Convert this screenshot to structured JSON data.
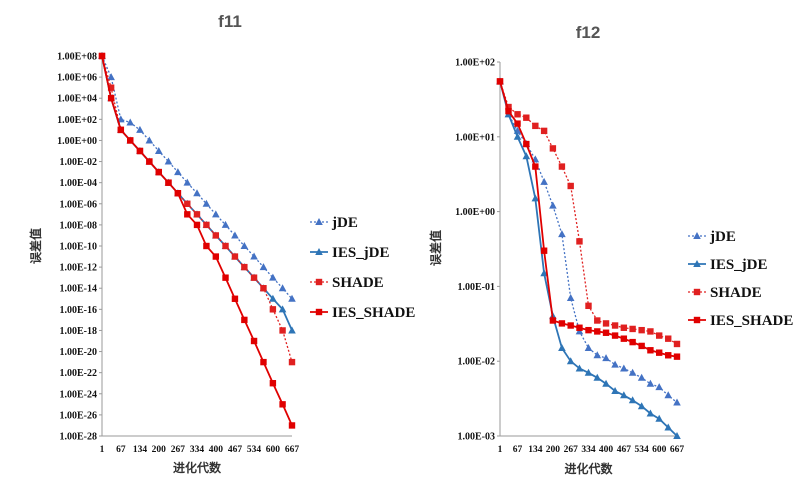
{
  "chart_data": [
    {
      "type": "line",
      "title": "f11",
      "xlabel": "进化代数",
      "ylabel": "误差值",
      "yscale": "log",
      "ylim": [
        1e-28,
        100000000.0
      ],
      "xlim": [
        1,
        667
      ],
      "x_ticks": [
        "1",
        "67",
        "134",
        "200",
        "267",
        "334",
        "400",
        "467",
        "534",
        "600",
        "667"
      ],
      "y_ticks": [
        "1.00E+08",
        "1.00E+06",
        "1.00E+04",
        "1.00E+02",
        "1.00E+00",
        "1.00E-02",
        "1.00E-04",
        "1.00E-06",
        "1.00E-08",
        "1.00E-10",
        "1.00E-12",
        "1.00E-14",
        "1.00E-16",
        "1.00E-18",
        "1.00E-20",
        "1.00E-22",
        "1.00E-24",
        "1.00E-26",
        "1.00E-28"
      ],
      "grid": false,
      "legend_position": "right",
      "series": [
        {
          "name": "jDE",
          "color": "#4472c4",
          "dash": true,
          "marker": "triangle",
          "x": [
            1,
            33,
            67,
            100,
            134,
            167,
            200,
            234,
            267,
            300,
            334,
            367,
            400,
            434,
            467,
            500,
            534,
            567,
            600,
            634,
            667
          ],
          "y": [
            100000000.0,
            1000000.0,
            100.0,
            50.0,
            10.0,
            1.0,
            0.1,
            0.01,
            0.001,
            0.0001,
            1e-05,
            1e-06,
            1e-07,
            1e-08,
            1e-09,
            1e-10,
            1e-11,
            1e-12,
            1e-13,
            1e-14,
            1e-15
          ]
        },
        {
          "name": "IES_jDE",
          "color": "#2e75b6",
          "dash": false,
          "marker": "triangle",
          "x": [
            1,
            33,
            67,
            100,
            134,
            167,
            200,
            234,
            267,
            300,
            334,
            367,
            400,
            434,
            467,
            500,
            534,
            567,
            600,
            634,
            667
          ],
          "y": [
            100000000.0,
            10000.0,
            10.0,
            1.0,
            0.1,
            0.01,
            0.001,
            0.0001,
            1e-05,
            1e-06,
            1e-07,
            1e-08,
            1e-09,
            1e-10,
            1e-11,
            1e-12,
            1e-13,
            1e-14,
            1e-15,
            1e-16,
            1e-18
          ]
        },
        {
          "name": "SHADE",
          "color": "#e02020",
          "dash": true,
          "marker": "square",
          "x": [
            1,
            33,
            67,
            100,
            134,
            167,
            200,
            234,
            267,
            300,
            334,
            367,
            400,
            434,
            467,
            500,
            534,
            567,
            600,
            634,
            667
          ],
          "y": [
            100000000.0,
            100000.0,
            10.0,
            1.0,
            0.1,
            0.01,
            0.001,
            0.0001,
            1e-05,
            1e-06,
            1e-07,
            1e-08,
            1e-09,
            1e-10,
            1e-11,
            1e-12,
            1e-13,
            1e-14,
            1e-16,
            1e-18,
            1e-21
          ]
        },
        {
          "name": "IES_SHADE",
          "color": "#e00000",
          "dash": false,
          "marker": "square",
          "x": [
            1,
            33,
            67,
            100,
            134,
            167,
            200,
            234,
            267,
            300,
            334,
            367,
            400,
            434,
            467,
            500,
            534,
            567,
            600,
            634,
            667
          ],
          "y": [
            100000000.0,
            10000.0,
            10.0,
            1.0,
            0.1,
            0.01,
            0.001,
            0.0001,
            1e-05,
            1e-07,
            1e-08,
            1e-10,
            1e-11,
            1e-13,
            1e-15,
            1e-17,
            1e-19,
            1e-21,
            1e-23,
            1e-25,
            1e-27
          ]
        }
      ]
    },
    {
      "type": "line",
      "title": "f12",
      "xlabel": "进化代数",
      "ylabel": "误差值",
      "yscale": "log",
      "ylim": [
        0.001,
        100
      ],
      "xlim": [
        1,
        667
      ],
      "x_ticks": [
        "1",
        "67",
        "134",
        "200",
        "267",
        "334",
        "400",
        "467",
        "534",
        "600",
        "667"
      ],
      "y_ticks": [
        "1.00E+02",
        "1.00E+01",
        "1.00E+00",
        "1.00E-01",
        "1.00E-02",
        "1.00E-03"
      ],
      "grid": false,
      "legend_position": "right",
      "series": [
        {
          "name": "jDE",
          "color": "#4472c4",
          "dash": true,
          "marker": "triangle",
          "x": [
            1,
            33,
            67,
            100,
            134,
            167,
            200,
            234,
            267,
            300,
            334,
            367,
            400,
            434,
            467,
            500,
            534,
            567,
            600,
            634,
            667
          ],
          "y": [
            55,
            20,
            12,
            8,
            5,
            2.5,
            1.2,
            0.5,
            0.07,
            0.025,
            0.015,
            0.012,
            0.011,
            0.009,
            0.008,
            0.007,
            0.006,
            0.005,
            0.0045,
            0.0035,
            0.0028
          ]
        },
        {
          "name": "IES_jDE",
          "color": "#2e75b6",
          "dash": false,
          "marker": "triangle",
          "x": [
            1,
            33,
            67,
            100,
            134,
            167,
            200,
            234,
            267,
            300,
            334,
            367,
            400,
            434,
            467,
            500,
            534,
            567,
            600,
            634,
            667
          ],
          "y": [
            55,
            20,
            10,
            5.5,
            1.5,
            0.15,
            0.04,
            0.015,
            0.01,
            0.008,
            0.007,
            0.006,
            0.005,
            0.004,
            0.0035,
            0.003,
            0.0025,
            0.002,
            0.0017,
            0.0013,
            0.001
          ]
        },
        {
          "name": "SHADE",
          "color": "#e02020",
          "dash": true,
          "marker": "square",
          "x": [
            1,
            33,
            67,
            100,
            134,
            167,
            200,
            234,
            267,
            300,
            334,
            367,
            400,
            434,
            467,
            500,
            534,
            567,
            600,
            634,
            667
          ],
          "y": [
            55,
            25,
            20,
            18,
            14,
            12,
            7,
            4,
            2.2,
            0.4,
            0.055,
            0.035,
            0.032,
            0.03,
            0.028,
            0.027,
            0.026,
            0.025,
            0.022,
            0.02,
            0.017
          ]
        },
        {
          "name": "IES_SHADE",
          "color": "#e00000",
          "dash": false,
          "marker": "square",
          "x": [
            1,
            33,
            67,
            100,
            134,
            167,
            200,
            234,
            267,
            300,
            334,
            367,
            400,
            434,
            467,
            500,
            534,
            567,
            600,
            634,
            667
          ],
          "y": [
            55,
            22,
            15,
            8,
            4,
            0.3,
            0.035,
            0.032,
            0.03,
            0.028,
            0.026,
            0.025,
            0.024,
            0.022,
            0.02,
            0.018,
            0.016,
            0.014,
            0.013,
            0.012,
            0.0115
          ]
        }
      ]
    }
  ]
}
